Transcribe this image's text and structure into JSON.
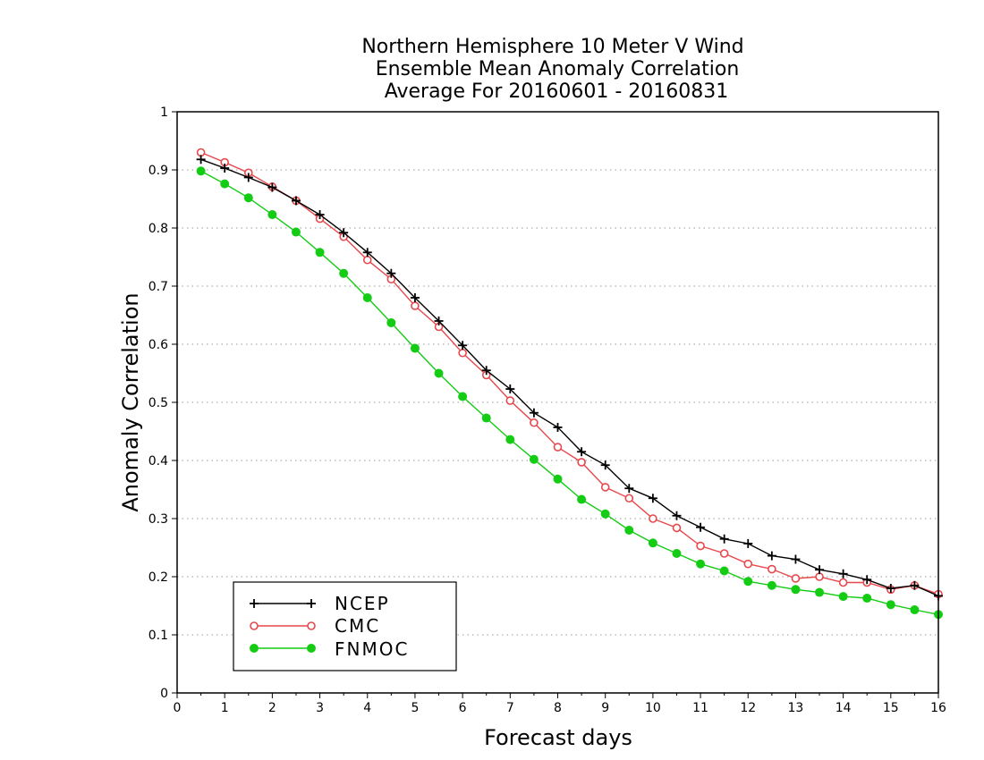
{
  "chart_data": {
    "type": "line",
    "title": [
      "Northern Hemisphere 10 Meter V Wind",
      "Ensemble Mean Anomaly Correlation",
      "Average For 20160601 - 20160831"
    ],
    "xlabel": "Forecast days",
    "ylabel": "Anomaly Correlation",
    "xlim": [
      0,
      16
    ],
    "ylim": [
      0,
      1
    ],
    "xticks": [
      "0",
      "1",
      "2",
      "3",
      "4",
      "5",
      "6",
      "7",
      "8",
      "9",
      "10",
      "11",
      "12",
      "13",
      "14",
      "15",
      "16"
    ],
    "yticks": [
      "0",
      "0.1",
      "0.2",
      "0.3",
      "0.4",
      "0.5",
      "0.6",
      "0.7",
      "0.8",
      "0.9",
      "1"
    ],
    "grid": "horizontal dotted",
    "legend_position": "bottom-left",
    "x": [
      0.5,
      1,
      1.5,
      2,
      2.5,
      3,
      3.5,
      4,
      4.5,
      5,
      5.5,
      6,
      6.5,
      7,
      7.5,
      8,
      8.5,
      9,
      9.5,
      10,
      10.5,
      11,
      11.5,
      12,
      12.5,
      13,
      13.5,
      14,
      14.5,
      15,
      15.5,
      16
    ],
    "series": [
      {
        "name": "NCEP",
        "color": "#000000",
        "marker": "plus",
        "values": [
          0.918,
          0.903,
          0.887,
          0.87,
          0.847,
          0.823,
          0.792,
          0.758,
          0.722,
          0.68,
          0.64,
          0.598,
          0.555,
          0.523,
          0.482,
          0.457,
          0.415,
          0.392,
          0.352,
          0.335,
          0.305,
          0.285,
          0.265,
          0.257,
          0.236,
          0.23,
          0.212,
          0.205,
          0.195,
          0.18,
          0.185,
          0.167
        ]
      },
      {
        "name": "CMC",
        "color": "#e8474b",
        "marker": "open-circle",
        "values": [
          0.93,
          0.913,
          0.895,
          0.871,
          0.847,
          0.816,
          0.785,
          0.745,
          0.712,
          0.666,
          0.63,
          0.585,
          0.547,
          0.503,
          0.465,
          0.423,
          0.397,
          0.354,
          0.335,
          0.3,
          0.284,
          0.253,
          0.24,
          0.222,
          0.213,
          0.197,
          0.2,
          0.19,
          0.19,
          0.178,
          0.185,
          0.17
        ]
      },
      {
        "name": "FNMOC",
        "color": "#14cc14",
        "marker": "filled-circle",
        "values": [
          0.898,
          0.876,
          0.852,
          0.823,
          0.793,
          0.758,
          0.722,
          0.68,
          0.637,
          0.593,
          0.55,
          0.51,
          0.473,
          0.436,
          0.402,
          0.368,
          0.333,
          0.308,
          0.28,
          0.258,
          0.24,
          0.222,
          0.21,
          0.192,
          0.185,
          0.178,
          0.173,
          0.166,
          0.163,
          0.152,
          0.143,
          0.135
        ]
      }
    ]
  }
}
